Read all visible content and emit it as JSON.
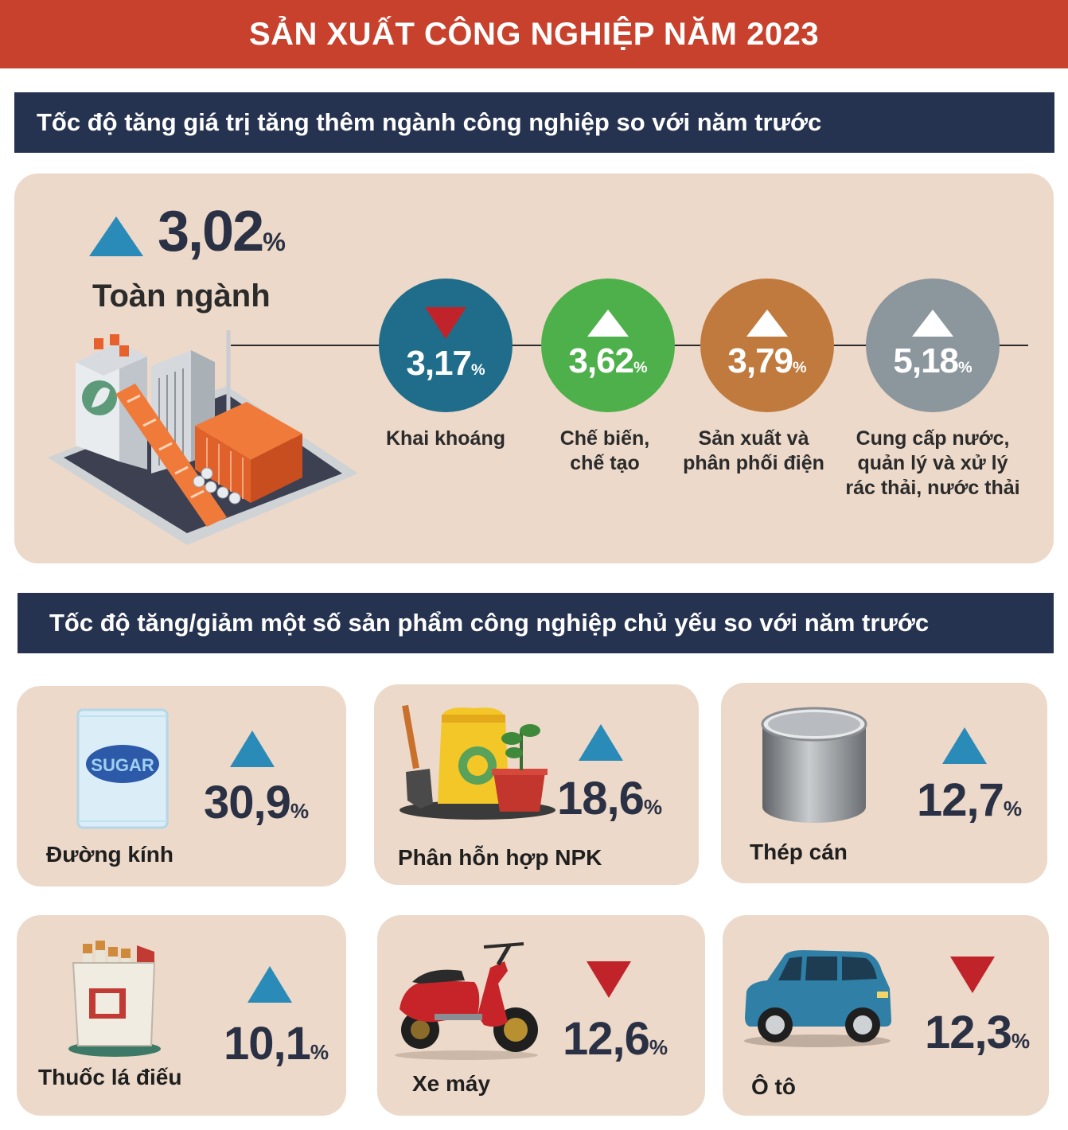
{
  "header": {
    "title": "SẢN XUẤT CÔNG NGHIỆP NĂM 2023"
  },
  "section1": {
    "title": "Tốc độ tăng giá trị tăng thêm ngành công nghiệp so với năm trước",
    "overall": {
      "value": "3,02",
      "unit": "%",
      "label": "Toàn ngành",
      "direction": "up"
    },
    "sectors": [
      {
        "value": "3,17",
        "unit": "%",
        "direction": "down",
        "color": "#1f6d8a",
        "label_lines": [
          "Khai khoáng"
        ]
      },
      {
        "value": "3,62",
        "unit": "%",
        "direction": "up",
        "color": "#4db04a",
        "label_lines": [
          "Chế biến,",
          "chế tạo"
        ]
      },
      {
        "value": "3,79",
        "unit": "%",
        "direction": "up",
        "color": "#c07a3e",
        "label_lines": [
          "Sản xuất và",
          "phân phối điện"
        ]
      },
      {
        "value": "5,18",
        "unit": "%",
        "direction": "up",
        "color": "#8b969d",
        "label_lines": [
          "Cung cấp nước,",
          "quản lý và xử lý",
          "rác thải, nước thải"
        ]
      }
    ]
  },
  "section2": {
    "title": "Tốc độ tăng/giảm một số sản phẩm công nghiệp chủ yếu so với năm trước",
    "products": [
      {
        "label": "Đường kính",
        "value": "30,9",
        "unit": "%",
        "direction": "up",
        "icon": "sugar-bag-icon",
        "icon_text": "SUGAR"
      },
      {
        "label": "Phân hỗn hợp NPK",
        "value": "18,6",
        "unit": "%",
        "direction": "up",
        "icon": "fertilizer-icon"
      },
      {
        "label": "Thép cán",
        "value": "12,7",
        "unit": "%",
        "direction": "up",
        "icon": "steel-cylinder-icon"
      },
      {
        "label": "Thuốc lá điếu",
        "value": "10,1",
        "unit": "%",
        "direction": "up",
        "icon": "cigarette-pack-icon"
      },
      {
        "label": "Xe máy",
        "value": "12,6",
        "unit": "%",
        "direction": "down",
        "icon": "scooter-icon"
      },
      {
        "label": "Ô tô",
        "value": "12,3",
        "unit": "%",
        "direction": "down",
        "icon": "car-icon"
      }
    ]
  },
  "colors": {
    "banner": "#c8412c",
    "section_bar": "#263350",
    "panel": "#ecd9c9",
    "up": "#2a8bb8",
    "down": "#c0242a"
  }
}
